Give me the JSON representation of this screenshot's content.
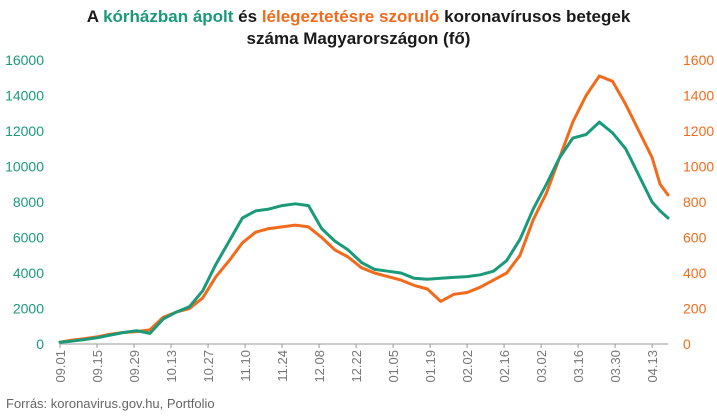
{
  "title": {
    "part1": "A ",
    "green_part": "kórházban ápolt",
    "part2": " és ",
    "orange_part": "lélegeztetésre szoruló",
    "part3": " koronavírusos betegek",
    "line2": "száma Magyarországon  (fő)"
  },
  "source": "Forrás: koronavirus.gov.hu, Portfolio",
  "colors": {
    "hospitalized": "#1a9a7a",
    "ventilated": "#f26a1b",
    "axis_text": "#777777",
    "baseline": "#999999"
  },
  "chart_data": {
    "type": "line",
    "x_dates": [
      "2020-09-01",
      "2020-09-05",
      "2020-09-10",
      "2020-09-15",
      "2020-09-20",
      "2020-09-25",
      "2020-09-30",
      "2020-10-05",
      "2020-10-10",
      "2020-10-15",
      "2020-10-20",
      "2020-10-25",
      "2020-10-30",
      "2020-11-04",
      "2020-11-09",
      "2020-11-14",
      "2020-11-19",
      "2020-11-24",
      "2020-11-29",
      "2020-12-04",
      "2020-12-09",
      "2020-12-14",
      "2020-12-19",
      "2020-12-24",
      "2020-12-29",
      "2021-01-03",
      "2021-01-08",
      "2021-01-13",
      "2021-01-18",
      "2021-01-23",
      "2021-01-28",
      "2021-02-02",
      "2021-02-07",
      "2021-02-12",
      "2021-02-17",
      "2021-02-22",
      "2021-02-27",
      "2021-03-04",
      "2021-03-09",
      "2021-03-14",
      "2021-03-19",
      "2021-03-24",
      "2021-03-29",
      "2021-04-03",
      "2021-04-08",
      "2021-04-13",
      "2021-04-16",
      "2021-04-19"
    ],
    "x_ticks": [
      "09.01",
      "09.15",
      "09.29",
      "10.13",
      "10.27",
      "11.10",
      "11.24",
      "12.08",
      "12.22",
      "01.05",
      "01.19",
      "02.02",
      "02.16",
      "03.02",
      "03.16",
      "03.30",
      "04.13"
    ],
    "series": [
      {
        "axis": "left",
        "values": [
          100,
          150,
          250,
          350,
          500,
          650,
          750,
          600,
          1400,
          1800,
          2100,
          3000,
          4500,
          5800,
          7100,
          7500,
          7600,
          7800,
          7900,
          7800,
          6500,
          5800,
          5300,
          4600,
          4200,
          4100,
          4000,
          3700,
          3650,
          3700,
          3750,
          3800,
          3900,
          4100,
          4700,
          5900,
          7600,
          9000,
          10500,
          11600,
          11800,
          12500,
          11900,
          11000,
          9500,
          8000,
          7500,
          7100
        ]
      },
      {
        "axis": "right",
        "values": [
          10,
          20,
          30,
          40,
          55,
          65,
          70,
          80,
          150,
          180,
          200,
          260,
          380,
          470,
          570,
          630,
          650,
          660,
          670,
          660,
          600,
          530,
          490,
          430,
          400,
          380,
          360,
          330,
          310,
          240,
          280,
          290,
          320,
          360,
          400,
          500,
          700,
          850,
          1050,
          1250,
          1400,
          1510,
          1480,
          1350,
          1200,
          1050,
          900,
          840
        ]
      }
    ],
    "ylim_left": [
      0,
      16000
    ],
    "yticks_left": [
      0,
      2000,
      4000,
      6000,
      8000,
      10000,
      12000,
      14000,
      16000
    ],
    "ylim_right": [
      0,
      1600
    ],
    "yticks_right": [
      0,
      200,
      400,
      600,
      800,
      1000,
      1200,
      1400,
      1600
    ],
    "grid": false
  }
}
